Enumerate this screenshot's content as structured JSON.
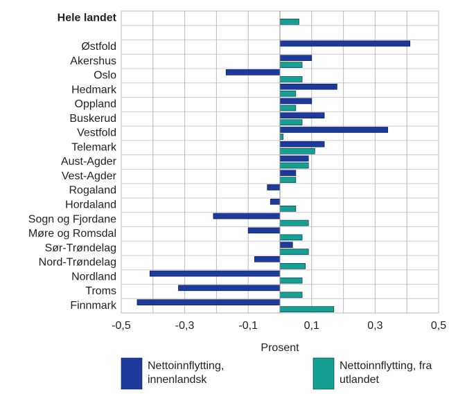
{
  "chart_data": {
    "type": "hbar",
    "categories": [
      "Hele landet",
      null,
      "Østfold",
      "Akershus",
      "Oslo",
      "Hedmark",
      "Oppland",
      "Buskerud",
      "Vestfold",
      "Telemark",
      "Aust-Agder",
      "Vest-Agder",
      "Rogaland",
      "Hordaland",
      "Sogn og Fjordane",
      "Møre og Romsdal",
      "Sør-Trøndelag",
      "Nord-Trøndelag",
      "Nordland",
      "Troms",
      "Finnmark"
    ],
    "series": [
      {
        "name": "Nettoinnflytting, innenlandsk",
        "color": "#1b3a9c",
        "values": [
          null,
          null,
          0.41,
          0.1,
          -0.17,
          0.18,
          0.1,
          0.14,
          0.34,
          0.14,
          0.09,
          0.05,
          -0.04,
          -0.03,
          -0.21,
          -0.1,
          0.04,
          -0.08,
          -0.41,
          -0.32,
          -0.45
        ]
      },
      {
        "name": "Nettoinnflytting, fra utlandet",
        "color": "#14a192",
        "values": [
          0.06,
          null,
          null,
          0.07,
          0.07,
          0.05,
          0.05,
          0.07,
          0.01,
          0.11,
          0.09,
          0.05,
          null,
          0.05,
          0.09,
          0.07,
          0.09,
          0.08,
          0.07,
          0.07,
          0.17
        ]
      }
    ],
    "xlabel": "Prosent",
    "xlim": [
      -0.5,
      0.5
    ],
    "xticks": [
      {
        "value": -0.5,
        "label": "-0,5"
      },
      {
        "value": -0.3,
        "label": "-0,3"
      },
      {
        "value": -0.1,
        "label": "-0,1"
      },
      {
        "value": 0.1,
        "label": "0,1"
      },
      {
        "value": 0.3,
        "label": "0,3"
      },
      {
        "value": 0.5,
        "label": "0,5"
      }
    ],
    "minor_xticks": [
      -0.4,
      -0.2,
      0,
      0.2,
      0.4
    ],
    "grid": true,
    "legend": "bottom"
  }
}
